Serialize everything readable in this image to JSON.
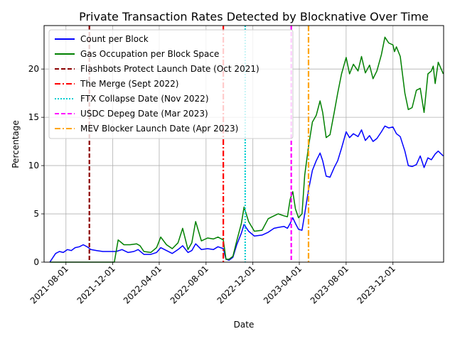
{
  "chart_data": {
    "type": "line",
    "title": "Private Transaction Rates Detected by Blocknative Over Time",
    "xlabel": "Date",
    "ylabel": "Percentage",
    "xlim": [
      "2021-06-05",
      "2024-04-11"
    ],
    "ylim": [
      0,
      24.5
    ],
    "x_ticks": [
      "2021-08-01",
      "2021-12-01",
      "2022-04-01",
      "2022-08-01",
      "2022-12-01",
      "2023-04-01",
      "2023-08-01",
      "2023-12-01"
    ],
    "y_ticks": [
      0,
      5,
      10,
      15,
      20
    ],
    "grid": true,
    "legend_position": "upper-left",
    "series": [
      {
        "name": "Count per Block",
        "color": "#0000ff",
        "points": [
          [
            "2021-06-20",
            0.0
          ],
          [
            "2021-07-05",
            0.9
          ],
          [
            "2021-07-15",
            1.1
          ],
          [
            "2021-07-25",
            1.0
          ],
          [
            "2021-08-05",
            1.3
          ],
          [
            "2021-08-15",
            1.2
          ],
          [
            "2021-08-25",
            1.5
          ],
          [
            "2021-09-05",
            1.6
          ],
          [
            "2021-09-15",
            1.8
          ],
          [
            "2021-09-25",
            1.6
          ],
          [
            "2021-10-05",
            1.3
          ],
          [
            "2021-10-20",
            1.2
          ],
          [
            "2021-11-05",
            1.1
          ],
          [
            "2021-11-20",
            1.1
          ],
          [
            "2021-12-10",
            1.1
          ],
          [
            "2021-12-25",
            1.3
          ],
          [
            "2022-01-10",
            1.0
          ],
          [
            "2022-01-25",
            1.1
          ],
          [
            "2022-02-05",
            1.3
          ],
          [
            "2022-02-20",
            0.8
          ],
          [
            "2022-03-10",
            0.8
          ],
          [
            "2022-03-25",
            1.0
          ],
          [
            "2022-04-05",
            1.5
          ],
          [
            "2022-04-20",
            1.2
          ],
          [
            "2022-05-05",
            0.9
          ],
          [
            "2022-05-20",
            1.3
          ],
          [
            "2022-06-01",
            1.7
          ],
          [
            "2022-06-15",
            1.0
          ],
          [
            "2022-06-25",
            1.2
          ],
          [
            "2022-07-05",
            1.9
          ],
          [
            "2022-07-20",
            1.3
          ],
          [
            "2022-08-05",
            1.4
          ],
          [
            "2022-08-20",
            1.3
          ],
          [
            "2022-09-01",
            1.6
          ],
          [
            "2022-09-15",
            1.4
          ],
          [
            "2022-09-22",
            0.3
          ],
          [
            "2022-09-30",
            0.2
          ],
          [
            "2022-10-10",
            0.5
          ],
          [
            "2022-10-20",
            1.8
          ],
          [
            "2022-11-01",
            3.0
          ],
          [
            "2022-11-08",
            3.9
          ],
          [
            "2022-11-20",
            3.2
          ],
          [
            "2022-12-05",
            2.7
          ],
          [
            "2022-12-25",
            2.8
          ],
          [
            "2023-01-10",
            3.1
          ],
          [
            "2023-01-25",
            3.5
          ],
          [
            "2023-02-05",
            3.6
          ],
          [
            "2023-02-20",
            3.7
          ],
          [
            "2023-03-01",
            3.5
          ],
          [
            "2023-03-08",
            4.0
          ],
          [
            "2023-03-15",
            4.6
          ],
          [
            "2023-03-22",
            4.0
          ],
          [
            "2023-03-30",
            3.4
          ],
          [
            "2023-04-08",
            3.3
          ],
          [
            "2023-04-15",
            5.0
          ],
          [
            "2023-04-25",
            7.5
          ],
          [
            "2023-05-05",
            9.5
          ],
          [
            "2023-05-15",
            10.5
          ],
          [
            "2023-05-25",
            11.3
          ],
          [
            "2023-06-01",
            10.5
          ],
          [
            "2023-06-10",
            8.9
          ],
          [
            "2023-06-20",
            8.8
          ],
          [
            "2023-07-01",
            9.8
          ],
          [
            "2023-07-10",
            10.5
          ],
          [
            "2023-07-20",
            11.8
          ],
          [
            "2023-08-01",
            13.5
          ],
          [
            "2023-08-10",
            12.9
          ],
          [
            "2023-08-20",
            13.3
          ],
          [
            "2023-09-01",
            13.0
          ],
          [
            "2023-09-10",
            13.7
          ],
          [
            "2023-09-20",
            12.6
          ],
          [
            "2023-10-01",
            13.1
          ],
          [
            "2023-10-10",
            12.5
          ],
          [
            "2023-10-20",
            12.8
          ],
          [
            "2023-11-01",
            13.5
          ],
          [
            "2023-11-10",
            14.1
          ],
          [
            "2023-11-20",
            13.9
          ],
          [
            "2023-12-01",
            14.0
          ],
          [
            "2023-12-10",
            13.3
          ],
          [
            "2023-12-20",
            13.0
          ],
          [
            "2024-01-01",
            11.5
          ],
          [
            "2024-01-10",
            10.0
          ],
          [
            "2024-01-20",
            9.9
          ],
          [
            "2024-01-31",
            10.1
          ],
          [
            "2024-02-10",
            11.0
          ],
          [
            "2024-02-20",
            9.8
          ],
          [
            "2024-03-01",
            10.8
          ],
          [
            "2024-03-10",
            10.6
          ],
          [
            "2024-03-20",
            11.2
          ],
          [
            "2024-03-28",
            11.5
          ],
          [
            "2024-04-10",
            11.0
          ]
        ]
      },
      {
        "name": "Gas Occupation per Block Space",
        "color": "#008000",
        "points": [
          [
            "2021-06-20",
            0.0
          ],
          [
            "2021-08-15",
            0.0
          ],
          [
            "2021-10-05",
            0.0
          ],
          [
            "2021-11-15",
            0.0
          ],
          [
            "2021-12-05",
            0.0
          ],
          [
            "2021-12-15",
            2.3
          ],
          [
            "2021-12-30",
            1.8
          ],
          [
            "2022-01-15",
            1.8
          ],
          [
            "2022-02-01",
            1.9
          ],
          [
            "2022-02-10",
            1.7
          ],
          [
            "2022-02-20",
            1.1
          ],
          [
            "2022-03-10",
            1.0
          ],
          [
            "2022-03-25",
            1.5
          ],
          [
            "2022-04-05",
            2.6
          ],
          [
            "2022-04-20",
            1.8
          ],
          [
            "2022-05-05",
            1.4
          ],
          [
            "2022-05-20",
            2.0
          ],
          [
            "2022-06-01",
            3.5
          ],
          [
            "2022-06-15",
            1.3
          ],
          [
            "2022-06-25",
            2.0
          ],
          [
            "2022-07-05",
            4.2
          ],
          [
            "2022-07-20",
            2.2
          ],
          [
            "2022-08-05",
            2.5
          ],
          [
            "2022-08-20",
            2.4
          ],
          [
            "2022-09-01",
            2.6
          ],
          [
            "2022-09-15",
            2.3
          ],
          [
            "2022-09-22",
            0.3
          ],
          [
            "2022-09-30",
            0.3
          ],
          [
            "2022-10-10",
            0.6
          ],
          [
            "2022-10-20",
            2.2
          ],
          [
            "2022-11-01",
            4.0
          ],
          [
            "2022-11-08",
            5.7
          ],
          [
            "2022-11-20",
            4.2
          ],
          [
            "2022-12-05",
            3.2
          ],
          [
            "2022-12-25",
            3.3
          ],
          [
            "2023-01-10",
            4.5
          ],
          [
            "2023-01-25",
            4.8
          ],
          [
            "2023-02-05",
            5.0
          ],
          [
            "2023-02-20",
            4.8
          ],
          [
            "2023-03-01",
            4.7
          ],
          [
            "2023-03-08",
            6.5
          ],
          [
            "2023-03-15",
            7.3
          ],
          [
            "2023-03-22",
            5.5
          ],
          [
            "2023-03-30",
            4.6
          ],
          [
            "2023-04-08",
            5.0
          ],
          [
            "2023-04-15",
            9.0
          ],
          [
            "2023-04-25",
            12.0
          ],
          [
            "2023-05-05",
            14.5
          ],
          [
            "2023-05-15",
            15.2
          ],
          [
            "2023-05-25",
            16.7
          ],
          [
            "2023-06-01",
            15.5
          ],
          [
            "2023-06-10",
            12.9
          ],
          [
            "2023-06-20",
            13.2
          ],
          [
            "2023-07-01",
            15.5
          ],
          [
            "2023-07-10",
            17.5
          ],
          [
            "2023-07-20",
            19.5
          ],
          [
            "2023-08-01",
            21.2
          ],
          [
            "2023-08-10",
            19.5
          ],
          [
            "2023-08-20",
            20.5
          ],
          [
            "2023-09-01",
            19.8
          ],
          [
            "2023-09-10",
            21.3
          ],
          [
            "2023-09-20",
            19.6
          ],
          [
            "2023-10-01",
            20.4
          ],
          [
            "2023-10-10",
            19.0
          ],
          [
            "2023-10-20",
            19.8
          ],
          [
            "2023-11-01",
            21.5
          ],
          [
            "2023-11-10",
            23.3
          ],
          [
            "2023-11-20",
            22.7
          ],
          [
            "2023-12-01",
            22.5
          ],
          [
            "2023-12-05",
            21.8
          ],
          [
            "2023-12-10",
            22.3
          ],
          [
            "2023-12-20",
            21.3
          ],
          [
            "2024-01-01",
            17.5
          ],
          [
            "2024-01-10",
            15.8
          ],
          [
            "2024-01-20",
            16.0
          ],
          [
            "2024-01-31",
            17.8
          ],
          [
            "2024-02-10",
            18.0
          ],
          [
            "2024-02-20",
            15.5
          ],
          [
            "2024-03-01",
            19.5
          ],
          [
            "2024-03-10",
            19.8
          ],
          [
            "2024-03-15",
            20.3
          ],
          [
            "2024-03-20",
            18.5
          ],
          [
            "2024-03-28",
            20.7
          ],
          [
            "2024-04-10",
            19.5
          ]
        ]
      }
    ],
    "vlines": [
      {
        "name": "Flashbots Protect Launch Date (Oct 2021)",
        "date": "2021-10-01",
        "color": "#8b0000",
        "style": "dashed"
      },
      {
        "name": "The Merge (Sept 2022)",
        "date": "2022-09-15",
        "color": "#ff0000",
        "style": "dashdot"
      },
      {
        "name": "FTX Collapse Date (Nov 2022)",
        "date": "2022-11-11",
        "color": "#00ced1",
        "style": "dotted"
      },
      {
        "name": "USDC Depeg Date (Mar 2023)",
        "date": "2023-03-11",
        "color": "#ff00ff",
        "style": "dashed"
      },
      {
        "name": "MEV Blocker Launch Date (Apr 2023)",
        "date": "2023-04-25",
        "color": "#ffa500",
        "style": "dashdot"
      }
    ]
  }
}
